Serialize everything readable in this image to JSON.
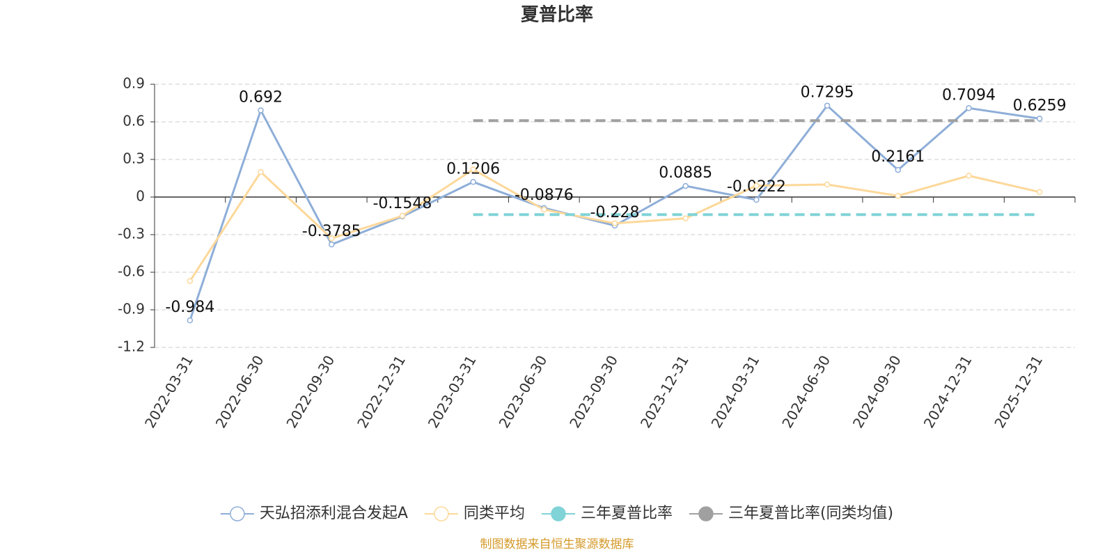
{
  "chart_data": {
    "type": "line",
    "title": "夏普比率",
    "categories": [
      "2022-03-31",
      "2022-06-30",
      "2022-09-30",
      "2022-12-31",
      "2023-03-31",
      "2023-06-30",
      "2023-09-30",
      "2023-12-31",
      "2024-03-31",
      "2024-06-30",
      "2024-09-30",
      "2024-12-31",
      "2025-12-31"
    ],
    "series": [
      {
        "name": "天弘招添利混合发起A",
        "color": "#8eaed8",
        "values": [
          -0.984,
          0.692,
          -0.3785,
          -0.1548,
          0.1206,
          -0.0876,
          -0.228,
          0.0885,
          -0.0222,
          0.7295,
          0.2161,
          0.7094,
          0.6259
        ],
        "labels": true,
        "markers": true
      },
      {
        "name": "同类平均",
        "color": "#fdd89a",
        "values": [
          -0.67,
          0.2,
          -0.33,
          -0.15,
          0.22,
          -0.1,
          -0.21,
          -0.17,
          0.09,
          0.1,
          0.01,
          0.17,
          0.04
        ],
        "markers": true
      },
      {
        "name": "三年夏普比率",
        "color": "#80d3d7",
        "values": [
          null,
          null,
          null,
          null,
          -0.14,
          -0.14,
          -0.14,
          -0.14,
          -0.14,
          -0.14,
          -0.14,
          -0.14,
          -0.14
        ],
        "dashed": true
      },
      {
        "name": "三年夏普比率(同类均值)",
        "color": "#a0a0a0",
        "values": [
          null,
          null,
          null,
          null,
          0.61,
          0.61,
          0.61,
          0.61,
          0.61,
          0.61,
          0.61,
          0.61,
          0.61
        ],
        "dashed": true
      }
    ],
    "ylim": [
      -1.2,
      0.9
    ],
    "yticks": [
      0.9,
      0.6,
      0.3,
      0,
      -0.3,
      -0.6,
      -0.9,
      -1.2
    ],
    "grid": true,
    "legend": "bottom",
    "source": "制图数据来自恒生聚源数据库"
  }
}
